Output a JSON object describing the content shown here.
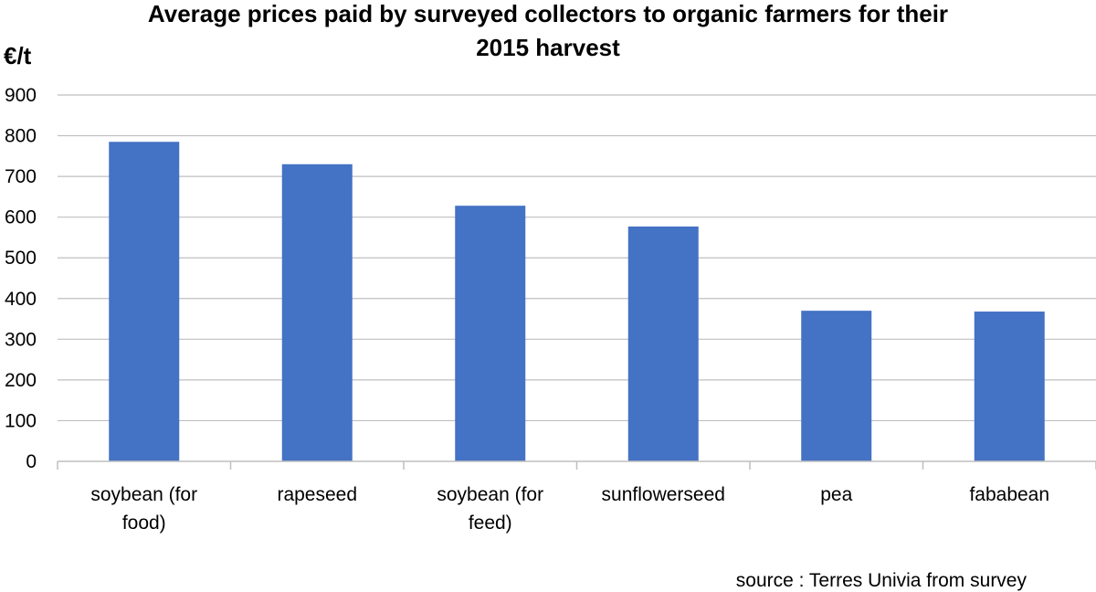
{
  "chart_data": {
    "type": "bar",
    "title_lines": [
      "Average prices paid by surveyed collectors to organic farmers for their",
      "2015 harvest"
    ],
    "ylabel": "€/t",
    "xlabel": "",
    "categories": [
      [
        "soybean (for",
        "food)"
      ],
      [
        "rapeseed"
      ],
      [
        "soybean (for",
        "feed)"
      ],
      [
        "sunflowerseed"
      ],
      [
        "pea"
      ],
      [
        "fababean"
      ]
    ],
    "values": [
      785,
      730,
      628,
      577,
      370,
      368
    ],
    "ylim": [
      0,
      900
    ],
    "yticks": [
      0,
      100,
      200,
      300,
      400,
      500,
      600,
      700,
      800,
      900
    ],
    "grid": true,
    "legend": "none",
    "bar_color": "#4472C4",
    "grid_color": "#BFBFBF",
    "source": "source : Terres Univia from survey"
  }
}
